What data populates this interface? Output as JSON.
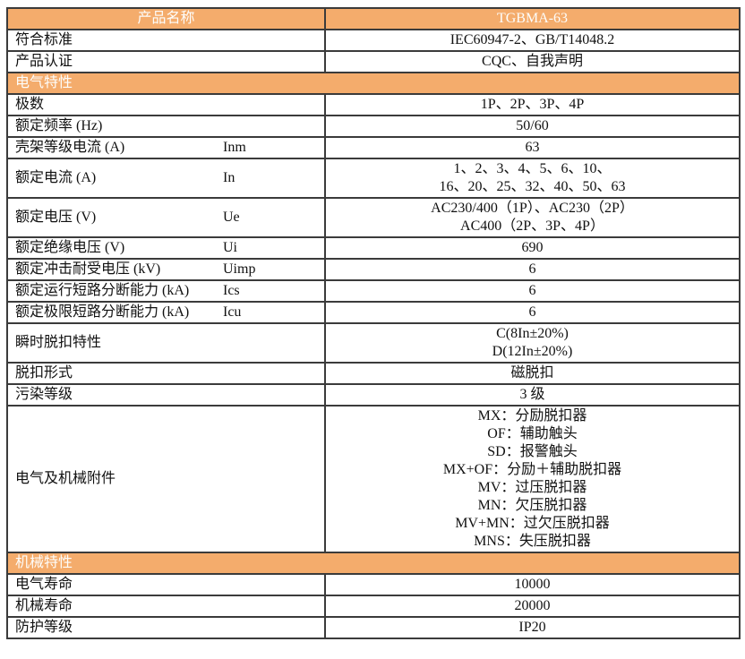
{
  "colors": {
    "accent_orange": "#f4ac6c",
    "border": "#3b3b3b",
    "header_text": "#fdfdfb",
    "body_text": "#111111"
  },
  "table": {
    "rows": [
      {
        "type": "header",
        "label": "产品名称",
        "value": "TGBMA-63"
      },
      {
        "type": "data",
        "label": "符合标准",
        "symbol": "",
        "value": "IEC60947-2、GB/T14048.2"
      },
      {
        "type": "data",
        "label": "产品认证",
        "symbol": "",
        "value": "CQC、自我声明"
      },
      {
        "type": "section",
        "label": "电气特性"
      },
      {
        "type": "data",
        "label": "极数",
        "symbol": "",
        "value": "1P、2P、3P、4P"
      },
      {
        "type": "data",
        "label": "额定频率 (Hz)",
        "symbol": "",
        "value": "50/60"
      },
      {
        "type": "data",
        "label": "壳架等级电流 (A)",
        "symbol": "Inm",
        "value": "63"
      },
      {
        "type": "data",
        "label": "额定电流 (A)",
        "symbol": "In",
        "value": "1、2、3、4、5、6、10、\n16、20、25、32、40、50、63"
      },
      {
        "type": "data",
        "label": "额定电压 (V)",
        "symbol": "Ue",
        "value": "AC230/400（1P）、AC230（2P）\nAC400（2P、3P、4P）"
      },
      {
        "type": "data",
        "label": "额定绝缘电压 (V)",
        "symbol": "Ui",
        "value": "690"
      },
      {
        "type": "data",
        "label": "额定冲击耐受电压 (kV)",
        "symbol": "Uimp",
        "value": "6"
      },
      {
        "type": "data",
        "label": "额定运行短路分断能力 (kA)",
        "symbol": "Ics",
        "value": "6"
      },
      {
        "type": "data",
        "label": "额定极限短路分断能力 (kA)",
        "symbol": "Icu",
        "value": "6"
      },
      {
        "type": "data",
        "label": "瞬时脱扣特性",
        "symbol": "",
        "value": "C(8In±20%)\nD(12In±20%)"
      },
      {
        "type": "data",
        "label": "脱扣形式",
        "symbol": "",
        "value": "磁脱扣"
      },
      {
        "type": "data",
        "label": "污染等级",
        "symbol": "",
        "value": "3 级"
      },
      {
        "type": "data",
        "label": "电气及机械附件",
        "symbol": "",
        "value": "MX：分励脱扣器\nOF：辅助触头\nSD：报警触头\nMX+OF：分励＋辅助脱扣器\nMV：过压脱扣器\nMN：欠压脱扣器\nMV+MN：过欠压脱扣器\nMNS：失压脱扣器"
      },
      {
        "type": "section",
        "label": "机械特性"
      },
      {
        "type": "data",
        "label": "电气寿命",
        "symbol": "",
        "value": "10000"
      },
      {
        "type": "data",
        "label": "机械寿命",
        "symbol": "",
        "value": "20000"
      },
      {
        "type": "data",
        "label": "防护等级",
        "symbol": "",
        "value": "IP20"
      }
    ]
  }
}
